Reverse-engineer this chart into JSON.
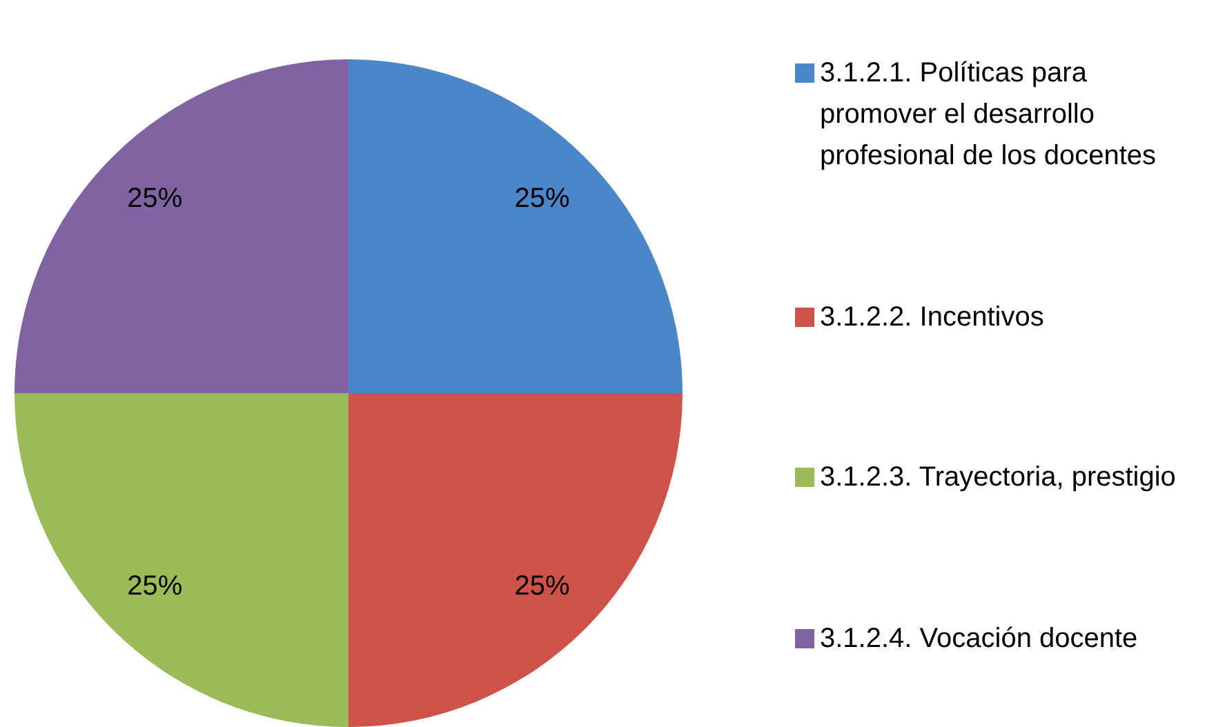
{
  "chart_data": {
    "type": "pie",
    "categories": [
      "3.1.2.1. Políticas para promover el desarrollo profesional de los docentes",
      "3.1.2.2. Incentivos",
      "3.1.2.3. Trayectoria, prestigio",
      "3.1.2.4. Vocación docente"
    ],
    "values": [
      25,
      25,
      25,
      25
    ],
    "colors": [
      "#4a86c8",
      "#cc524a",
      "#9bbb59",
      "#7f64a1"
    ],
    "value_labels": [
      "25%",
      "25%",
      "25%",
      "25%"
    ],
    "legend": "right"
  }
}
